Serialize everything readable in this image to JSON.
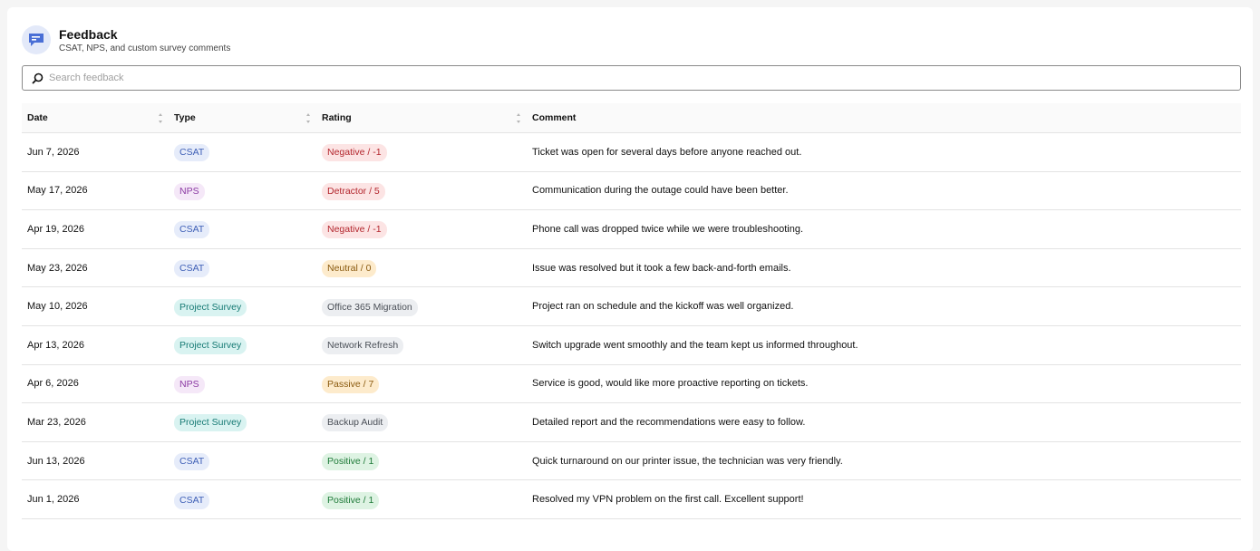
{
  "header": {
    "title": "Feedback",
    "subtitle": "CSAT, NPS, and custom survey comments",
    "icon": "chat-bubble-icon"
  },
  "search": {
    "placeholder": "Search feedback",
    "value": ""
  },
  "table": {
    "columns": [
      "Date",
      "Type",
      "Rating",
      "Comment"
    ],
    "rows": [
      {
        "date": "Jun 7, 2026",
        "type": "CSAT",
        "type_style": "csat",
        "rating": "Negative / -1",
        "rating_style": "negative",
        "comment": "Ticket was open for several days before anyone reached out."
      },
      {
        "date": "May 17, 2026",
        "type": "NPS",
        "type_style": "nps",
        "rating": "Detractor / 5",
        "rating_style": "negative",
        "comment": "Communication during the outage could have been better."
      },
      {
        "date": "Apr 19, 2026",
        "type": "CSAT",
        "type_style": "csat",
        "rating": "Negative / -1",
        "rating_style": "negative",
        "comment": "Phone call was dropped twice while we were troubleshooting."
      },
      {
        "date": "May 23, 2026",
        "type": "CSAT",
        "type_style": "csat",
        "rating": "Neutral / 0",
        "rating_style": "neutral",
        "comment": "Issue was resolved but it took a few back-and-forth emails."
      },
      {
        "date": "May 10, 2026",
        "type": "Project Survey",
        "type_style": "project",
        "rating": "Office 365 Migration",
        "rating_style": "project-name",
        "comment": "Project ran on schedule and the kickoff was well organized."
      },
      {
        "date": "Apr 13, 2026",
        "type": "Project Survey",
        "type_style": "project",
        "rating": "Network Refresh",
        "rating_style": "project-name",
        "comment": "Switch upgrade went smoothly and the team kept us informed throughout."
      },
      {
        "date": "Apr 6, 2026",
        "type": "NPS",
        "type_style": "nps",
        "rating": "Passive / 7",
        "rating_style": "neutral",
        "comment": "Service is good, would like more proactive reporting on tickets."
      },
      {
        "date": "Mar 23, 2026",
        "type": "Project Survey",
        "type_style": "project",
        "rating": "Backup Audit",
        "rating_style": "project-name",
        "comment": "Detailed report and the recommendations were easy to follow."
      },
      {
        "date": "Jun 13, 2026",
        "type": "CSAT",
        "type_style": "csat",
        "rating": "Positive / 1",
        "rating_style": "positive",
        "comment": "Quick turnaround on our printer issue, the technician was very friendly."
      },
      {
        "date": "Jun 1, 2026",
        "type": "CSAT",
        "type_style": "csat",
        "rating": "Positive / 1",
        "rating_style": "positive",
        "comment": "Resolved my VPN problem on the first call. Excellent support!"
      }
    ]
  },
  "colors": {
    "accent": "#4a6fd6",
    "csat": "#3e5fb6",
    "nps": "#8b3aa3",
    "project": "#167a74",
    "negative": "#b3262d",
    "neutral": "#8a5a0f",
    "positive": "#1e7a38"
  }
}
